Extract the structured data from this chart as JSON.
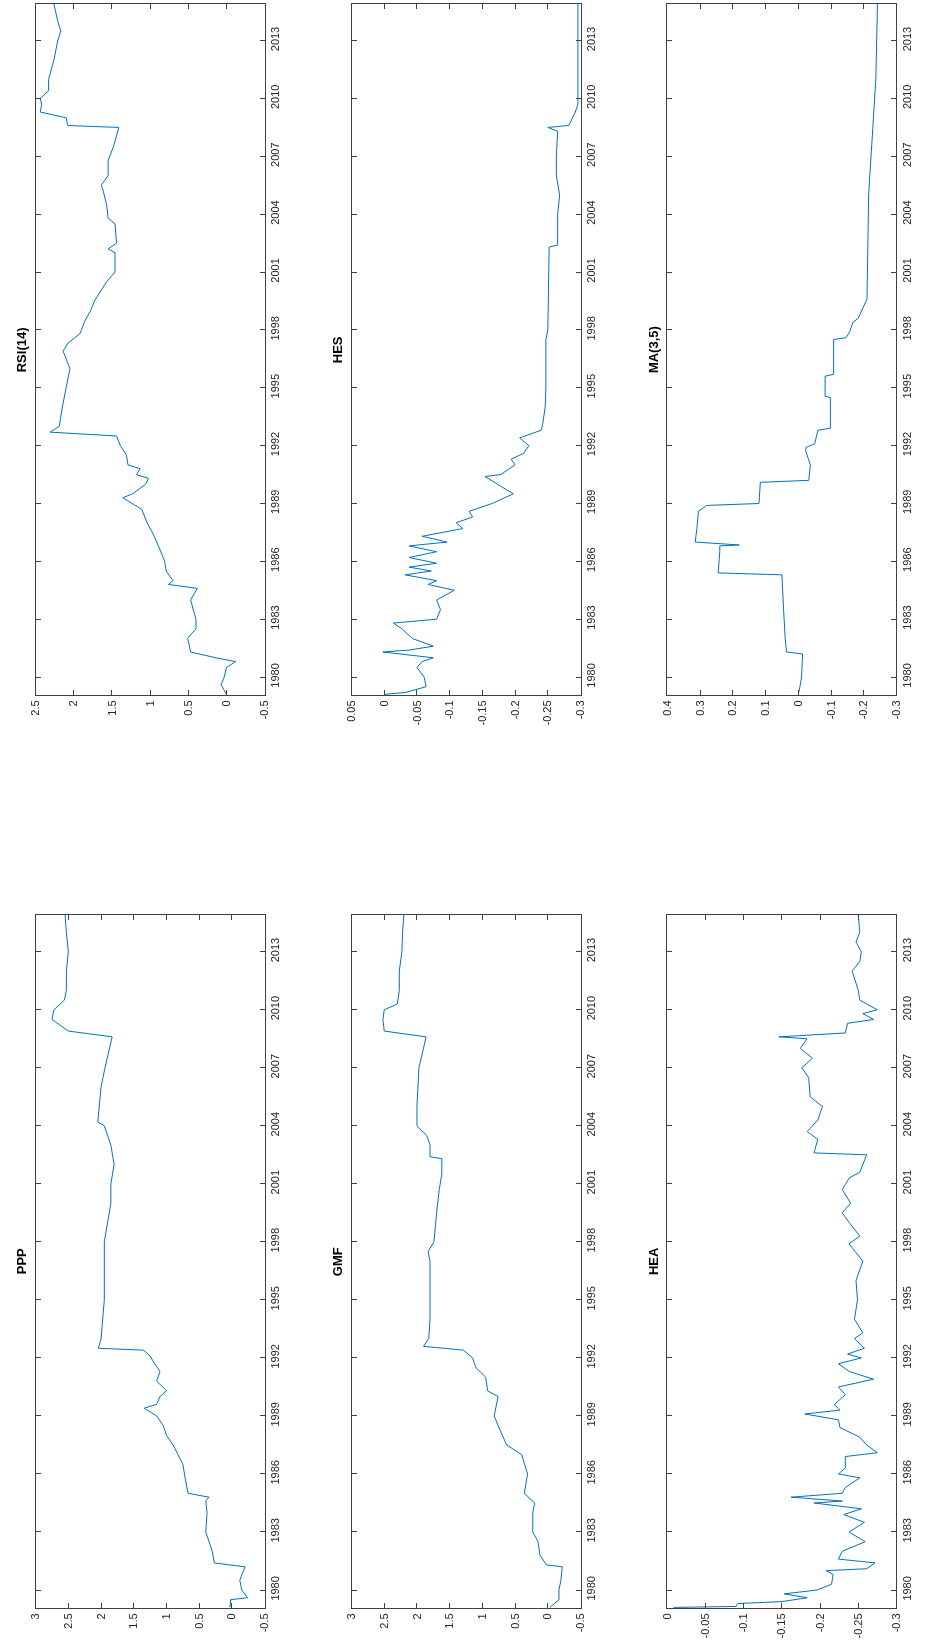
{
  "chart_data": [
    {
      "type": "line",
      "title": "RSI(14)",
      "color": "#0072bd",
      "ylim": [
        1979.07,
        2014.9
      ],
      "yticks": [
        1980,
        1983,
        1986,
        1989,
        1992,
        1995,
        1998,
        2001,
        2004,
        2007,
        2010,
        2013
      ],
      "xlim": [
        2.5,
        -0.5
      ],
      "xticks": [
        -0.5,
        0,
        0.5,
        1,
        1.5,
        2,
        2.5
      ],
      "values": [
        1979.1,
        1979.6,
        1980,
        1980.5,
        1980.8,
        1981,
        1981.3,
        1981.7,
        1982,
        1982.5,
        1983,
        1984,
        1984.6,
        1984.8,
        1985,
        1985.5,
        1986,
        1986.7,
        1987.5,
        1988,
        1988.7,
        1989.3,
        1989.5,
        1990,
        1990.3,
        1990.5,
        1990.8,
        1991,
        1991.5,
        1992,
        1992.5,
        1992.7,
        1993,
        1994,
        1995,
        1996,
        1996.9,
        1997.3,
        1997.8,
        1998.5,
        1999,
        1999.5,
        2000.5,
        2001,
        2002,
        2002.2,
        2002.5,
        2003.5,
        2003.8,
        2004.5,
        2005.3,
        2005.5,
        2006,
        2006.8,
        2007.5,
        2008.5,
        2008.6,
        2009,
        2009.3,
        2009.7,
        2010,
        2010.4,
        2011,
        2012,
        2013,
        2013.5,
        2014,
        2014.9
      ],
      "x": [
        0,
        0.07,
        0.03,
        0,
        -0.12,
        0.14,
        0.47,
        0.49,
        0.51,
        0.4,
        0.4,
        0.47,
        0.38,
        0.76,
        0.7,
        0.79,
        0.81,
        0.88,
        0.97,
        1.04,
        1.11,
        1.36,
        1.23,
        1.06,
        1.02,
        1.18,
        1.13,
        1.29,
        1.31,
        1.39,
        1.44,
        2.31,
        2.19,
        2.15,
        2.1,
        2.05,
        2.14,
        2.08,
        1.92,
        1.85,
        1.78,
        1.73,
        1.57,
        1.46,
        1.46,
        1.55,
        1.44,
        1.46,
        1.55,
        1.57,
        1.62,
        1.64,
        1.55,
        1.55,
        1.48,
        1.41,
        2.08,
        2.1,
        2.44,
        2.42,
        2.44,
        2.33,
        2.33,
        2.26,
        2.21,
        2.17,
        2.21,
        2.26
      ]
    },
    {
      "type": "line",
      "title": "HES",
      "color": "#0072bd",
      "ylim": [
        1979.07,
        2014.9
      ],
      "yticks": [
        1980,
        1983,
        1986,
        1989,
        1992,
        1995,
        1998,
        2001,
        2004,
        2007,
        2010,
        2013
      ],
      "xlim": [
        0.05,
        -0.3
      ],
      "xticks": [
        -0.3,
        -0.25,
        -0.2,
        -0.15,
        -0.1,
        -0.05,
        0,
        0.05
      ],
      "values": [
        1979.1,
        1979.2,
        1979.5,
        1980,
        1980.5,
        1980.8,
        1981,
        1981.3,
        1981.4,
        1981.6,
        1982,
        1982.5,
        1982.8,
        1983,
        1983.5,
        1984,
        1984.5,
        1984.8,
        1985,
        1985.3,
        1985.5,
        1985.7,
        1985.9,
        1986.2,
        1986.5,
        1986.8,
        1987,
        1987.3,
        1987.7,
        1988,
        1988.3,
        1988.6,
        1989,
        1989.5,
        1990.4,
        1990.5,
        1991,
        1991.3,
        1991.6,
        1992,
        1992.4,
        1992.8,
        1993.1,
        1994,
        1995,
        1997.5,
        1998,
        2000,
        2002.3,
        2002.4,
        2004,
        2005,
        2006,
        2007,
        2008.3,
        2008.5,
        2008.6,
        2009.3,
        2009.7,
        2014.9
      ],
      "x": [
        0,
        -0.032,
        -0.064,
        -0.061,
        -0.05,
        -0.058,
        -0.075,
        0.002,
        -0.038,
        -0.075,
        -0.043,
        -0.027,
        -0.014,
        -0.08,
        -0.086,
        -0.08,
        -0.107,
        -0.067,
        -0.08,
        -0.032,
        -0.072,
        -0.038,
        -0.08,
        -0.038,
        -0.08,
        -0.038,
        -0.096,
        -0.058,
        -0.12,
        -0.11,
        -0.135,
        -0.13,
        -0.165,
        -0.197,
        -0.154,
        -0.178,
        -0.2,
        -0.194,
        -0.213,
        -0.221,
        -0.207,
        -0.24,
        -0.242,
        -0.246,
        -0.247,
        -0.247,
        -0.25,
        -0.251,
        -0.252,
        -0.265,
        -0.265,
        -0.268,
        -0.263,
        -0.263,
        -0.265,
        -0.25,
        -0.282,
        -0.292,
        -0.296,
        -0.296
      ]
    },
    {
      "type": "line",
      "title": "MA(3,5)",
      "color": "#0072bd",
      "ylim": [
        1979.07,
        2014.9
      ],
      "yticks": [
        1980,
        1983,
        1986,
        1989,
        1992,
        1995,
        1998,
        2001,
        2004,
        2007,
        2010,
        2013
      ],
      "xlim": [
        0.4,
        -0.3
      ],
      "xticks": [
        -0.3,
        -0.2,
        -0.1,
        0,
        0.1,
        0.2,
        0.3,
        0.4
      ],
      "values": [
        1979.1,
        1979.5,
        1980,
        1981.2,
        1981.3,
        1982,
        1983.5,
        1985.3,
        1985.4,
        1986.5,
        1986.8,
        1986.85,
        1987,
        1987.7,
        1988.6,
        1988.9,
        1989,
        1990.1,
        1990.2,
        1991,
        1991.7,
        1991.9,
        1992.1,
        1992.8,
        1992.9,
        1994.5,
        1994.55,
        1995.6,
        1995.7,
        1997.5,
        1997.6,
        1997.9,
        1998.4,
        1998.6,
        1999.6,
        2005,
        2008,
        2011,
        2014.9
      ],
      "x": [
        0,
        -0.005,
        -0.01,
        -0.013,
        0.036,
        0.04,
        0.045,
        0.05,
        0.245,
        0.24,
        0.24,
        0.18,
        0.315,
        0.31,
        0.305,
        0.28,
        0.12,
        0.116,
        -0.032,
        -0.037,
        -0.023,
        -0.023,
        -0.05,
        -0.06,
        -0.098,
        -0.098,
        -0.082,
        -0.082,
        -0.108,
        -0.108,
        -0.146,
        -0.157,
        -0.167,
        -0.183,
        -0.21,
        -0.215,
        -0.226,
        -0.237,
        -0.242
      ]
    },
    {
      "type": "line",
      "title": "PPP",
      "color": "#0072bd",
      "ylim": [
        1979.07,
        2014.9
      ],
      "yticks": [
        1980,
        1983,
        1986,
        1989,
        1992,
        1995,
        1998,
        2001,
        2004,
        2007,
        2010,
        2013
      ],
      "xlim": [
        3,
        -0.5
      ],
      "xticks": [
        -0.5,
        0,
        0.5,
        1,
        1.5,
        2,
        2.5,
        3
      ],
      "values": [
        1979.1,
        1979.5,
        1979.6,
        1980,
        1980.5,
        1981.2,
        1981.4,
        1982,
        1983,
        1984,
        1984.6,
        1984.8,
        1985,
        1985.5,
        1986.5,
        1987.5,
        1988,
        1988.5,
        1989,
        1989.4,
        1989.6,
        1990,
        1990.3,
        1990.8,
        1991.3,
        1991.8,
        1992.1,
        1992.4,
        1992.5,
        1993,
        1995,
        1998,
        1999,
        2000,
        2001,
        2002,
        2003,
        2004,
        2004.2,
        2006,
        2007,
        2008.6,
        2008.9,
        2009.5,
        2010,
        2010.5,
        2011,
        2012,
        2013,
        2014,
        2014.9
      ],
      "x": [
        0.03,
        0.02,
        -0.24,
        -0.15,
        -0.12,
        -0.2,
        0.27,
        0.3,
        0.4,
        0.38,
        0.4,
        0.35,
        0.67,
        0.7,
        0.75,
        0.9,
        1.0,
        1.05,
        1.15,
        1.34,
        1.15,
        1.1,
        1.0,
        1.15,
        1.1,
        1.2,
        1.25,
        1.35,
        2.04,
        2.0,
        1.95,
        1.95,
        1.9,
        1.85,
        1.85,
        1.8,
        1.85,
        1.95,
        2.05,
        2.0,
        1.94,
        1.83,
        2.5,
        2.75,
        2.72,
        2.56,
        2.53,
        2.53,
        2.5,
        2.53,
        2.55
      ]
    },
    {
      "type": "line",
      "title": "GMF",
      "color": "#0072bd",
      "ylim": [
        1979.07,
        2014.9
      ],
      "yticks": [
        1980,
        1983,
        1986,
        1989,
        1992,
        1995,
        1998,
        2001,
        2004,
        2007,
        2010,
        2013
      ],
      "xlim": [
        3,
        -0.5
      ],
      "xticks": [
        -0.5,
        0,
        0.5,
        1,
        1.5,
        2,
        2.5,
        3
      ],
      "values": [
        1979.1,
        1979.5,
        1980,
        1980.5,
        1981.2,
        1981.3,
        1981.8,
        1982.5,
        1983,
        1984,
        1984.5,
        1985,
        1986,
        1987,
        1987.5,
        1988.5,
        1989,
        1990,
        1990.3,
        1991,
        1991.5,
        1992,
        1992.4,
        1992.6,
        1993,
        1994,
        1997,
        1997.5,
        1998,
        1999.5,
        2000.7,
        2001.5,
        2002.3,
        2002.4,
        2003,
        2003.5,
        2004,
        2005,
        2007,
        2008.6,
        2008.9,
        2009.5,
        2010,
        2010.3,
        2011,
        2012,
        2013,
        2014,
        2014.9
      ],
      "x": [
        -0.03,
        -0.17,
        -0.17,
        -0.2,
        -0.22,
        0.02,
        0.12,
        0.15,
        0.23,
        0.23,
        0.2,
        0.36,
        0.31,
        0.4,
        0.63,
        0.76,
        0.82,
        0.76,
        0.92,
        0.95,
        1.1,
        1.15,
        1.29,
        1.9,
        1.82,
        1.8,
        1.8,
        1.83,
        1.74,
        1.7,
        1.66,
        1.62,
        1.62,
        1.8,
        1.8,
        1.85,
        2.0,
        2.0,
        1.97,
        1.86,
        2.5,
        2.52,
        2.5,
        2.3,
        2.27,
        2.27,
        2.23,
        2.22,
        2.2
      ]
    },
    {
      "type": "line",
      "title": "HEA",
      "color": "#0072bd",
      "ylim": [
        1979.07,
        2014.9
      ],
      "yticks": [
        1980,
        1983,
        1986,
        1989,
        1992,
        1995,
        1998,
        2001,
        2004,
        2007,
        2010,
        2013
      ],
      "xlim": [
        0,
        -0.3
      ],
      "xticks": [
        -0.3,
        -0.25,
        -0.2,
        -0.15,
        -0.1,
        -0.05,
        0
      ],
      "values": [
        1979.1,
        1979.15,
        1979.3,
        1979.4,
        1979.6,
        1979.8,
        1980,
        1980.3,
        1980.8,
        1981,
        1981.1,
        1981.4,
        1981.6,
        1982,
        1982.5,
        1983,
        1983.5,
        1983.9,
        1984.2,
        1984.5,
        1984.6,
        1984.8,
        1985,
        1985.3,
        1985.8,
        1986,
        1986.3,
        1986.9,
        1987.1,
        1987.5,
        1987.9,
        1988.4,
        1988.8,
        1989.1,
        1989.3,
        1989.6,
        1990.1,
        1990.5,
        1990.9,
        1991.3,
        1991.7,
        1992,
        1992.2,
        1992.5,
        1993,
        1993.3,
        1994,
        1995,
        1996,
        1997,
        1997.9,
        1998.3,
        1999,
        1999.5,
        2000,
        2000.7,
        2001.3,
        2001.6,
        2002.5,
        2002.6,
        2003.3,
        2003.7,
        2004.3,
        2005,
        2005.5,
        2006.5,
        2007,
        2007.5,
        2008,
        2008.5,
        2008.6,
        2008.8,
        2009.3,
        2009.5,
        2009.8,
        2010,
        2010.3,
        2010.5,
        2011,
        2012,
        2012.5,
        2013,
        2013.5,
        2014,
        2014.9
      ],
      "x": [
        -0.008,
        -0.09,
        -0.092,
        -0.15,
        -0.183,
        -0.153,
        -0.196,
        -0.215,
        -0.217,
        -0.208,
        -0.261,
        -0.272,
        -0.224,
        -0.229,
        -0.259,
        -0.238,
        -0.258,
        -0.231,
        -0.254,
        -0.192,
        -0.229,
        -0.162,
        -0.229,
        -0.233,
        -0.252,
        -0.224,
        -0.233,
        -0.233,
        -0.275,
        -0.261,
        -0.252,
        -0.226,
        -0.224,
        -0.18,
        -0.226,
        -0.219,
        -0.233,
        -0.224,
        -0.27,
        -0.238,
        -0.224,
        -0.254,
        -0.236,
        -0.258,
        -0.245,
        -0.256,
        -0.245,
        -0.249,
        -0.247,
        -0.256,
        -0.238,
        -0.252,
        -0.238,
        -0.229,
        -0.24,
        -0.229,
        -0.238,
        -0.252,
        -0.261,
        -0.192,
        -0.197,
        -0.183,
        -0.197,
        -0.203,
        -0.187,
        -0.185,
        -0.176,
        -0.19,
        -0.174,
        -0.183,
        -0.146,
        -0.233,
        -0.236,
        -0.27,
        -0.256,
        -0.275,
        -0.261,
        -0.252,
        -0.25,
        -0.242,
        -0.252,
        -0.254,
        -0.247,
        -0.252,
        -0.25
      ]
    }
  ]
}
